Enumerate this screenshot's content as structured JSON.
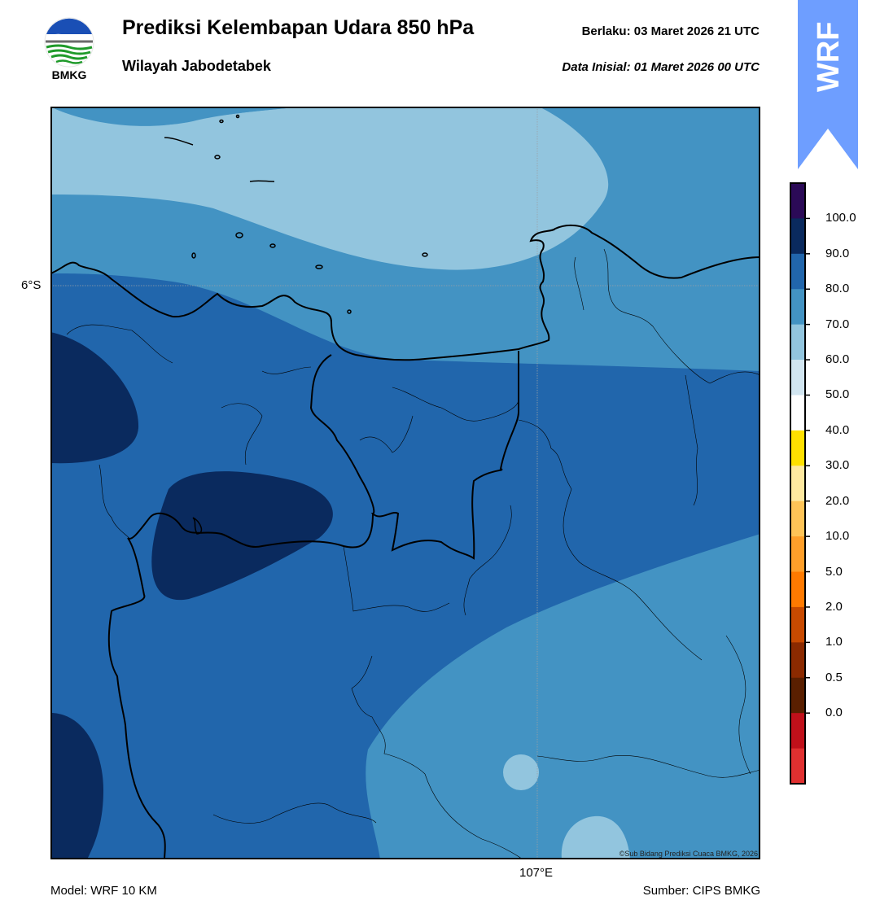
{
  "header": {
    "title": "Prediksi Kelembapan Udara 850 hPa",
    "subtitle": "Wilayah Jabodetabek",
    "valid_time": "Berlaku:  03 Maret 2026 21 UTC",
    "initial_time": "Data Inisial:  01 Maret 2026 00 UTC"
  },
  "logo": {
    "text": "BMKG",
    "icon": "bmkg-logo-icon"
  },
  "badge": {
    "text": "WRF",
    "color": "#6e9eff"
  },
  "map": {
    "lat_label": "6°S",
    "lon_label": "107°E",
    "copyright": "©Sub Bidang Prediksi Cuaca BMKG, 2026"
  },
  "footer": {
    "model": "Model: WRF 10 KM",
    "source": "Sumber: CIPS BMKG"
  },
  "colorbar": {
    "labels": [
      "100.0",
      "90.0",
      "80.0",
      "70.0",
      "60.0",
      "50.0",
      "40.0",
      "30.0",
      "20.0",
      "10.0",
      "5.0",
      "2.0",
      "1.0",
      "0.5",
      "0.0"
    ],
    "colors": [
      "#2b0a57",
      "#0a2a5e",
      "#2166ac",
      "#4393c3",
      "#92c5de",
      "#d1e5f0",
      "#ffffff",
      "#ffe000",
      "#ffe9a0",
      "#ffc457",
      "#ff9f2a",
      "#ff7a00",
      "#c84a00",
      "#8b2a00",
      "#5a1f00",
      "#c0101a",
      "#e03030"
    ]
  }
}
